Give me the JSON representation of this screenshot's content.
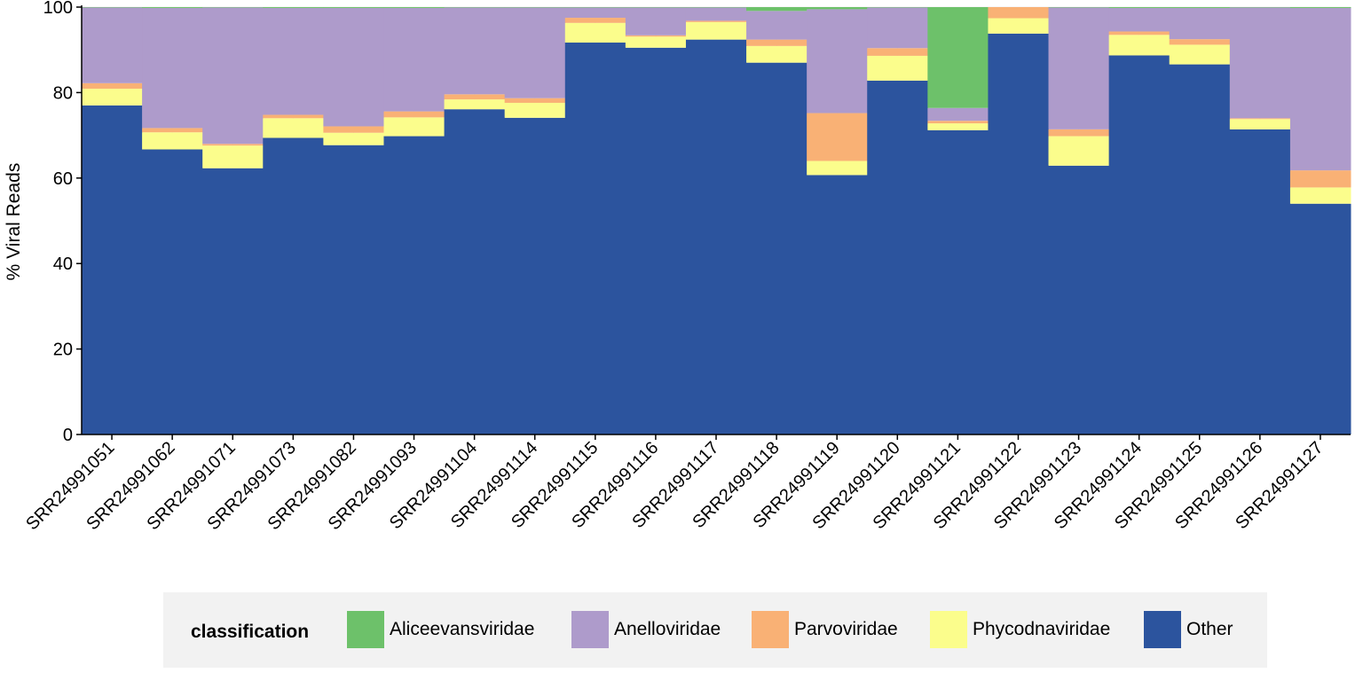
{
  "chart_data": {
    "type": "bar",
    "stacked": true,
    "ylabel": "% Viral Reads",
    "ylim": [
      0,
      100
    ],
    "yticks": [
      0,
      20,
      40,
      60,
      80,
      100
    ],
    "categories": [
      "SRR24991051",
      "SRR24991062",
      "SRR24991071",
      "SRR24991073",
      "SRR24991082",
      "SRR24991093",
      "SRR24991104",
      "SRR24991114",
      "SRR24991115",
      "SRR24991116",
      "SRR24991117",
      "SRR24991118",
      "SRR24991119",
      "SRR24991120",
      "SRR24991121",
      "SRR24991122",
      "SRR24991123",
      "SRR24991124",
      "SRR24991125",
      "SRR24991126",
      "SRR24991127"
    ],
    "series": [
      {
        "name": "Other",
        "color": "#2c549e",
        "values": [
          77.0,
          66.7,
          62.3,
          69.4,
          67.7,
          69.8,
          76.1,
          74.1,
          91.7,
          90.5,
          92.4,
          87.0,
          60.7,
          82.8,
          71.2,
          93.8,
          62.9,
          88.7,
          86.6,
          71.4,
          54.0
        ]
      },
      {
        "name": "Phycodnaviridae",
        "color": "#fbfd8c",
        "values": [
          3.9,
          4.0,
          5.3,
          4.6,
          2.9,
          4.4,
          2.3,
          3.5,
          4.6,
          2.6,
          4.1,
          3.9,
          3.3,
          5.8,
          1.6,
          3.6,
          6.9,
          4.8,
          4.6,
          2.4,
          3.8
        ]
      },
      {
        "name": "Parvoviridae",
        "color": "#f9b175",
        "values": [
          1.3,
          1.0,
          0.4,
          0.8,
          1.5,
          1.4,
          1.2,
          1.1,
          1.2,
          0.3,
          0.3,
          1.5,
          11.2,
          1.8,
          0.6,
          2.6,
          1.6,
          0.8,
          1.3,
          0.2,
          4.0
        ]
      },
      {
        "name": "Anelloviridae",
        "color": "#ae9bcb",
        "values": [
          17.7,
          28.1,
          31.9,
          25.0,
          27.7,
          24.2,
          20.3,
          21.2,
          2.4,
          6.5,
          3.1,
          6.7,
          24.3,
          9.5,
          3.0,
          0.0,
          28.5,
          5.5,
          7.3,
          25.9,
          38.0
        ]
      },
      {
        "name": "Aliceevansviridae",
        "color": "#6dc16a",
        "values": [
          0.1,
          0.2,
          0.1,
          0.2,
          0.2,
          0.2,
          0.1,
          0.1,
          0.1,
          0.1,
          0.1,
          0.9,
          0.5,
          0.1,
          23.6,
          0.0,
          0.1,
          0.2,
          0.2,
          0.1,
          0.2
        ]
      }
    ],
    "legend": {
      "title": "classification",
      "position": "bottom",
      "entries": [
        "Aliceevansviridae",
        "Anelloviridae",
        "Parvoviridae",
        "Phycodnaviridae",
        "Other"
      ]
    },
    "grid": true
  },
  "legend_colors": {
    "Aliceevansviridae": "#6dc16a",
    "Anelloviridae": "#ae9bcb",
    "Parvoviridae": "#f9b175",
    "Phycodnaviridae": "#fbfd8c",
    "Other": "#2c549e"
  }
}
